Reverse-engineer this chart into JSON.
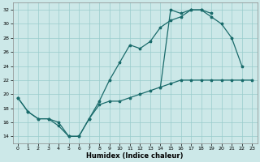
{
  "xlabel": "Humidex (Indice chaleur)",
  "bg_color": "#cce8e8",
  "grid_color": "#99cccc",
  "line_color": "#1a6b6b",
  "xlim": [
    -0.5,
    23.5
  ],
  "ylim": [
    13,
    33
  ],
  "xticks": [
    0,
    1,
    2,
    3,
    4,
    5,
    6,
    7,
    8,
    9,
    10,
    11,
    12,
    13,
    14,
    15,
    16,
    17,
    18,
    19,
    20,
    21,
    22,
    23
  ],
  "yticks": [
    14,
    16,
    18,
    20,
    22,
    24,
    26,
    28,
    30,
    32
  ],
  "line1_x": [
    0,
    1,
    2,
    3,
    4,
    5,
    6,
    7,
    8,
    9,
    10,
    11,
    12,
    13,
    14,
    15,
    16,
    17,
    18,
    19,
    20,
    21,
    22,
    23
  ],
  "line1_y": [
    19.5,
    17.5,
    16.5,
    16.5,
    15.5,
    14.0,
    14.0,
    16.5,
    18.5,
    19.0,
    19.0,
    19.5,
    20.0,
    20.5,
    21.0,
    21.5,
    22.0,
    22.0,
    22.0,
    22.0,
    22.0,
    22.0,
    22.0,
    22.0
  ],
  "line2_x": [
    0,
    1,
    2,
    3,
    4,
    5,
    6,
    7,
    8,
    9,
    10,
    11,
    12,
    13,
    14,
    15,
    16,
    17,
    18,
    19,
    20,
    21,
    22
  ],
  "line2_y": [
    19.5,
    17.5,
    16.5,
    16.5,
    16.0,
    14.0,
    14.0,
    16.5,
    19.0,
    22.0,
    24.5,
    27.0,
    26.5,
    27.5,
    29.5,
    30.5,
    31.0,
    32.0,
    32.0,
    31.0,
    30.0,
    28.0,
    24.0
  ],
  "line3_x": [
    14,
    15,
    16,
    17,
    18,
    19
  ],
  "line3_y": [
    21.0,
    32.0,
    31.5,
    32.0,
    32.0,
    31.5
  ]
}
